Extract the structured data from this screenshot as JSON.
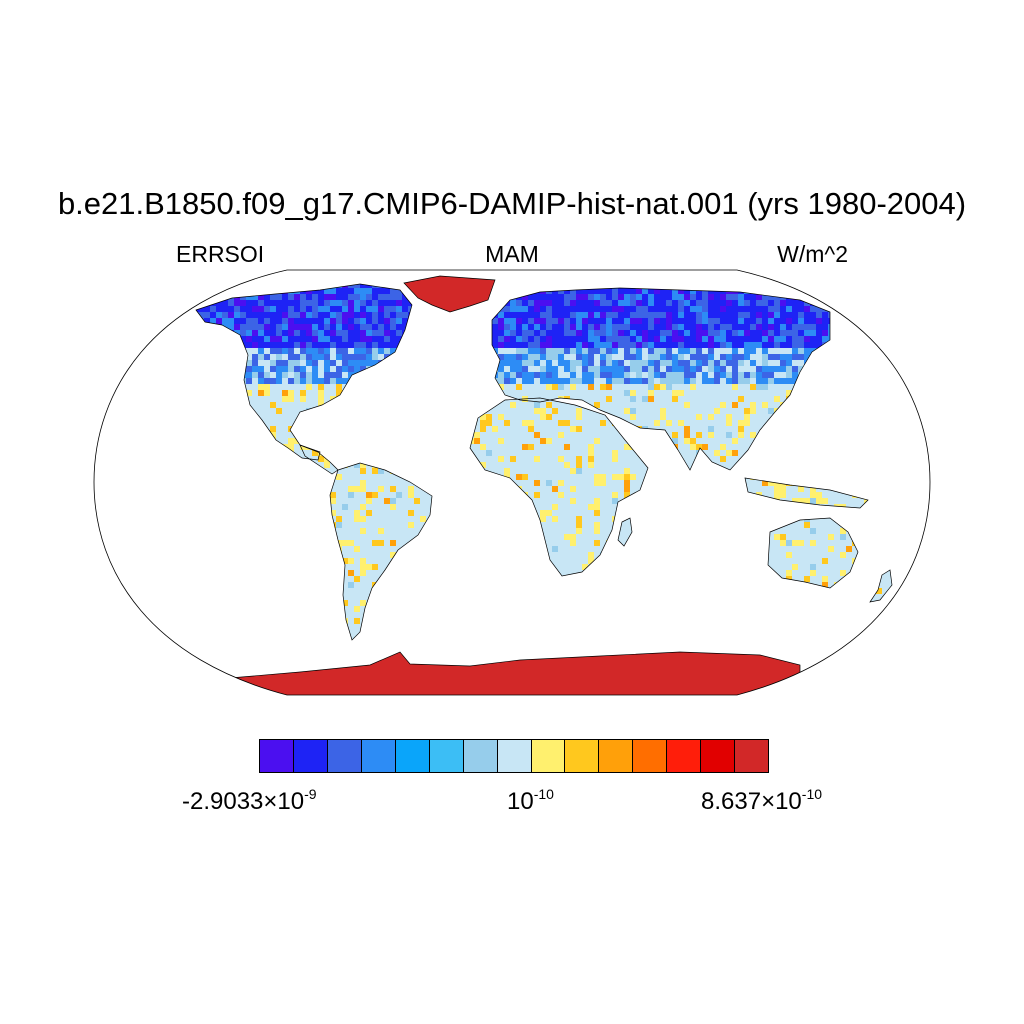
{
  "title": "b.e21.B1850.f09_g17.CMIP6-DAMIP-hist-nat.001 (yrs 1980-2004)",
  "left_label": "ERRSOI",
  "center_label": "MAM",
  "right_label": "W/m^2",
  "colorbar": {
    "colors": [
      "#4b0ff0",
      "#1e23f5",
      "#3c64e6",
      "#2d8cf5",
      "#0aa5fa",
      "#3cbef5",
      "#96cdeb",
      "#c8e6f5",
      "#fff06e",
      "#ffc81e",
      "#ffa00a",
      "#ff6e00",
      "#ff1e0a",
      "#e10000",
      "#d22828"
    ],
    "labels": [
      {
        "mantissa": "-2.9033",
        "exponent": "-9",
        "times": "×"
      },
      {
        "mantissa": "",
        "exponent": "-10",
        "times": ""
      },
      {
        "mantissa": "8.637",
        "exponent": "-10",
        "times": "×"
      }
    ]
  },
  "map": {
    "projection": "robinson",
    "ocean_color": "#ffffff",
    "coast_color": "#000000"
  }
}
